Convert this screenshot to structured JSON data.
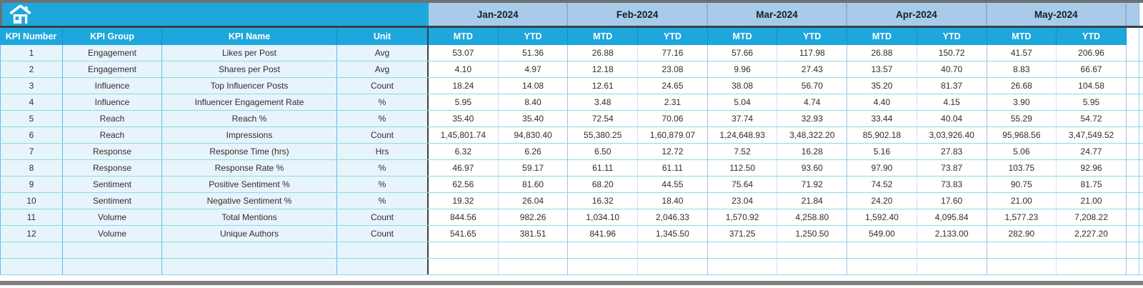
{
  "table": {
    "left_headers": [
      "KPI Number",
      "KPI Group",
      "KPI Name",
      "Unit"
    ],
    "months": [
      "Jan-2024",
      "Feb-2024",
      "Mar-2024",
      "Apr-2024",
      "May-2024"
    ],
    "period_headers": [
      "MTD",
      "YTD"
    ],
    "rows": [
      {
        "number": "1",
        "group": "Engagement",
        "name": "Likes per Post",
        "unit": "Avg",
        "values": [
          "53.07",
          "51.36",
          "26.88",
          "77.16",
          "57.66",
          "117.98",
          "26.88",
          "150.72",
          "41.57",
          "206.96"
        ]
      },
      {
        "number": "2",
        "group": "Engagement",
        "name": "Shares per Post",
        "unit": "Avg",
        "values": [
          "4.10",
          "4.97",
          "12.18",
          "23.08",
          "9.96",
          "27.43",
          "13.57",
          "40.70",
          "8.83",
          "66.67"
        ]
      },
      {
        "number": "3",
        "group": "Influence",
        "name": "Top Influencer Posts",
        "unit": "Count",
        "values": [
          "18.24",
          "14.08",
          "12.61",
          "24.65",
          "38.08",
          "56.70",
          "35.20",
          "81.37",
          "26.68",
          "104.58"
        ]
      },
      {
        "number": "4",
        "group": "Influence",
        "name": "Influencer Engagement Rate",
        "unit": "%",
        "values": [
          "5.95",
          "8.40",
          "3.48",
          "2.31",
          "5.04",
          "4.74",
          "4.40",
          "4.15",
          "3.90",
          "5.95"
        ]
      },
      {
        "number": "5",
        "group": "Reach",
        "name": "Reach %",
        "unit": "%",
        "values": [
          "35.40",
          "35.40",
          "72.54",
          "70.06",
          "37.74",
          "32.93",
          "33.44",
          "40.04",
          "55.29",
          "54.72"
        ]
      },
      {
        "number": "6",
        "group": "Reach",
        "name": "Impressions",
        "unit": "Count",
        "values": [
          "1,45,801.74",
          "94,830.40",
          "55,380.25",
          "1,60,879.07",
          "1,24,648.93",
          "3,48,322.20",
          "85,902.18",
          "3,03,926.40",
          "95,968.56",
          "3,47,549.52"
        ]
      },
      {
        "number": "7",
        "group": "Response",
        "name": "Response Time (hrs)",
        "unit": "Hrs",
        "values": [
          "6.32",
          "6.26",
          "6.50",
          "12.72",
          "7.52",
          "16.28",
          "5.16",
          "27.83",
          "5.06",
          "24.77"
        ]
      },
      {
        "number": "8",
        "group": "Response",
        "name": "Response Rate %",
        "unit": "%",
        "values": [
          "46.97",
          "59.17",
          "61.11",
          "61.11",
          "112.50",
          "93.60",
          "97.90",
          "73.87",
          "103.75",
          "92.96"
        ]
      },
      {
        "number": "9",
        "group": "Sentiment",
        "name": "Positive Sentiment %",
        "unit": "%",
        "values": [
          "62.56",
          "81.60",
          "68.20",
          "44.55",
          "75.64",
          "71.92",
          "74.52",
          "73.83",
          "90.75",
          "81.75"
        ]
      },
      {
        "number": "10",
        "group": "Sentiment",
        "name": "Negative Sentiment %",
        "unit": "%",
        "values": [
          "19.32",
          "26.04",
          "16.32",
          "18.40",
          "23.04",
          "21.84",
          "24.20",
          "17.60",
          "21.00",
          "21.00"
        ]
      },
      {
        "number": "11",
        "group": "Volume",
        "name": "Total Mentions",
        "unit": "Count",
        "values": [
          "844.56",
          "982.26",
          "1,034.10",
          "2,046.33",
          "1,570.92",
          "4,258.80",
          "1,592.40",
          "4,095.84",
          "1,577.23",
          "7,208.22"
        ]
      },
      {
        "number": "12",
        "group": "Volume",
        "name": "Unique Authors",
        "unit": "Count",
        "values": [
          "541.65",
          "381.51",
          "841.96",
          "1,345.50",
          "371.25",
          "1,250.50",
          "549.00",
          "2,133.00",
          "282.90",
          "2,227.20"
        ]
      }
    ],
    "empty_row_count": 2
  },
  "icons": {
    "home": "home-icon"
  },
  "colors": {
    "header_cyan": "#1EA7DC",
    "month_header_blue": "#A8CBE9",
    "row_tint": "#E8F4FB",
    "grid_teal": "#56C4E6",
    "dark_divider": "#3a3f46",
    "outer_gray": "#6e7072"
  }
}
